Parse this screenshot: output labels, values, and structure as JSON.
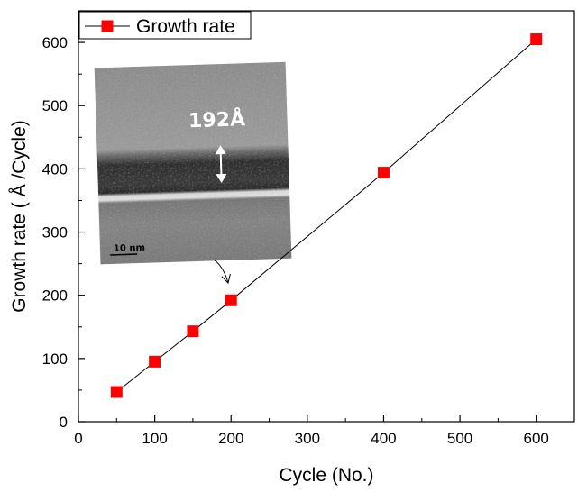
{
  "chart_data": {
    "type": "line",
    "x": [
      50,
      100,
      150,
      200,
      400,
      600
    ],
    "series": [
      {
        "name": "Growth rate",
        "values": [
          47,
          95,
          143,
          192,
          394,
          605
        ],
        "color": "#ff0000",
        "marker": "square",
        "line_color": "#000000"
      }
    ],
    "xlabel": "Cycle (No.)",
    "ylabel": "Growth rate ( Å /Cycle)",
    "xlim": [
      0,
      650
    ],
    "ylim": [
      0,
      650
    ],
    "xticks": [
      0,
      100,
      200,
      300,
      400,
      500,
      600
    ],
    "yticks": [
      0,
      100,
      200,
      300,
      400,
      500,
      600
    ],
    "grid": false,
    "legend_position": "top-left"
  },
  "inset": {
    "thickness_label": "192Å",
    "scale_bar_label": "10 nm",
    "points_to_x": 200
  }
}
